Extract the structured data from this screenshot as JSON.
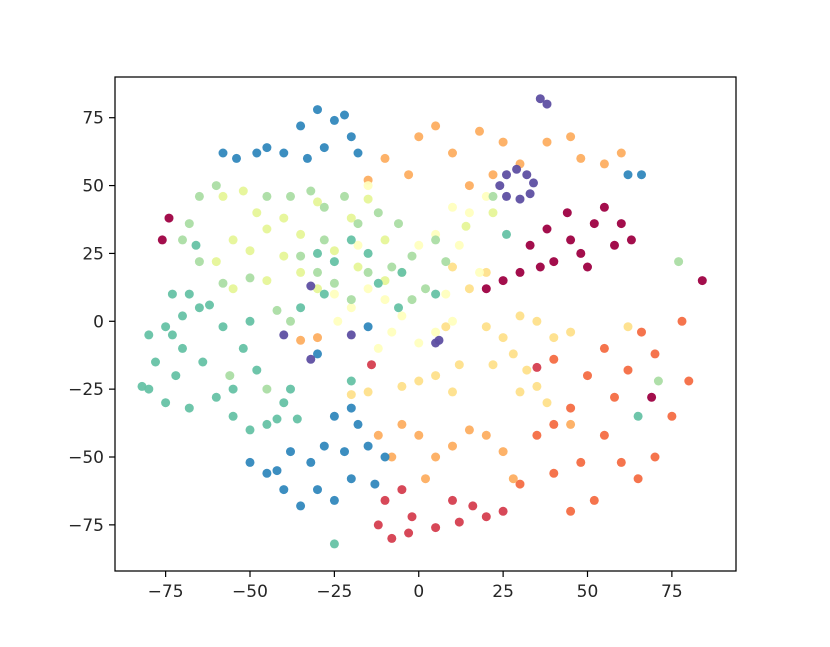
{
  "chart_data": {
    "type": "scatter",
    "title": "",
    "xlabel": "",
    "ylabel": "",
    "xlim": [
      -90,
      94
    ],
    "ylim": [
      -92,
      90
    ],
    "x_ticks": [
      -75,
      -50,
      -25,
      0,
      25,
      50,
      75
    ],
    "y_ticks": [
      -75,
      -50,
      -25,
      0,
      25,
      50,
      75
    ],
    "x_tick_labels": [
      "−75",
      "−50",
      "−25",
      "0",
      "25",
      "50",
      "75"
    ],
    "y_tick_labels": [
      "−75",
      "−50",
      "−25",
      "0",
      "25",
      "50",
      "75"
    ],
    "grid": false,
    "legend": "none",
    "clusters": [
      {
        "color": "#9e0142",
        "points": [
          [
            45,
            30
          ],
          [
            38,
            34
          ],
          [
            52,
            36
          ],
          [
            58,
            28
          ],
          [
            40,
            22
          ],
          [
            50,
            20
          ],
          [
            60,
            36
          ],
          [
            33,
            28
          ],
          [
            44,
            40
          ],
          [
            55,
            42
          ],
          [
            63,
            30
          ],
          [
            48,
            25
          ],
          [
            36,
            20
          ],
          [
            25,
            15
          ],
          [
            30,
            18
          ],
          [
            20,
            12
          ],
          [
            -74,
            38
          ],
          [
            -76,
            30
          ],
          [
            84,
            15
          ],
          [
            69,
            -28
          ]
        ]
      },
      {
        "color": "#d53e4f",
        "points": [
          [
            -10,
            -66
          ],
          [
            -5,
            -62
          ],
          [
            -2,
            -72
          ],
          [
            5,
            -76
          ],
          [
            12,
            -74
          ],
          [
            20,
            -72
          ],
          [
            25,
            -70
          ],
          [
            -8,
            -80
          ],
          [
            -3,
            -78
          ],
          [
            10,
            -66
          ],
          [
            16,
            -68
          ],
          [
            -12,
            -75
          ],
          [
            35,
            -17
          ],
          [
            -14,
            -16
          ]
        ]
      },
      {
        "color": "#f46d43",
        "points": [
          [
            50,
            -20
          ],
          [
            55,
            -10
          ],
          [
            58,
            -28
          ],
          [
            62,
            -18
          ],
          [
            45,
            -32
          ],
          [
            40,
            -38
          ],
          [
            35,
            -42
          ],
          [
            55,
            -42
          ],
          [
            60,
            -52
          ],
          [
            65,
            -58
          ],
          [
            70,
            -50
          ],
          [
            75,
            -35
          ],
          [
            80,
            -22
          ],
          [
            78,
            0
          ],
          [
            66,
            -4
          ],
          [
            70,
            -12
          ],
          [
            30,
            -60
          ],
          [
            40,
            -56
          ],
          [
            45,
            -70
          ],
          [
            52,
            -66
          ],
          [
            48,
            -52
          ],
          [
            40,
            -14
          ]
        ]
      },
      {
        "color": "#fdae61",
        "points": [
          [
            -5,
            -38
          ],
          [
            0,
            -42
          ],
          [
            5,
            -50
          ],
          [
            10,
            -46
          ],
          [
            15,
            -40
          ],
          [
            20,
            -42
          ],
          [
            25,
            -48
          ],
          [
            28,
            -58
          ],
          [
            2,
            -58
          ],
          [
            -8,
            -50
          ],
          [
            -12,
            -42
          ],
          [
            -10,
            60
          ],
          [
            -3,
            54
          ],
          [
            0,
            68
          ],
          [
            5,
            72
          ],
          [
            10,
            62
          ],
          [
            18,
            70
          ],
          [
            25,
            66
          ],
          [
            30,
            58
          ],
          [
            38,
            66
          ],
          [
            45,
            68
          ],
          [
            -15,
            52
          ],
          [
            48,
            60
          ],
          [
            55,
            58
          ],
          [
            60,
            62
          ],
          [
            15,
            50
          ],
          [
            22,
            54
          ],
          [
            -30,
            -6
          ],
          [
            -35,
            -7
          ],
          [
            45,
            -38
          ]
        ]
      },
      {
        "color": "#fee08b",
        "points": [
          [
            20,
            -2
          ],
          [
            25,
            -6
          ],
          [
            30,
            2
          ],
          [
            35,
            0
          ],
          [
            40,
            -6
          ],
          [
            45,
            -4
          ],
          [
            28,
            -12
          ],
          [
            32,
            -18
          ],
          [
            35,
            -24
          ],
          [
            38,
            -30
          ],
          [
            30,
            -26
          ],
          [
            22,
            -16
          ],
          [
            12,
            -16
          ],
          [
            5,
            -20
          ],
          [
            -5,
            -24
          ],
          [
            -15,
            -26
          ],
          [
            -20,
            -27
          ],
          [
            10,
            -26
          ],
          [
            0,
            -22
          ],
          [
            8,
            -2
          ],
          [
            15,
            12
          ],
          [
            20,
            18
          ],
          [
            10,
            20
          ],
          [
            62,
            -2
          ]
        ]
      },
      {
        "color": "#ffffbf",
        "points": [
          [
            -20,
            5
          ],
          [
            -15,
            12
          ],
          [
            -10,
            8
          ],
          [
            -5,
            2
          ],
          [
            -8,
            -4
          ],
          [
            -12,
            -10
          ],
          [
            0,
            -8
          ],
          [
            5,
            -4
          ],
          [
            10,
            0
          ],
          [
            -25,
            10
          ],
          [
            -5,
            18
          ],
          [
            0,
            28
          ],
          [
            5,
            32
          ],
          [
            12,
            28
          ],
          [
            18,
            18
          ],
          [
            8,
            10
          ],
          [
            -18,
            28
          ],
          [
            -24,
            0
          ],
          [
            15,
            40
          ],
          [
            -15,
            50
          ],
          [
            20,
            46
          ],
          [
            10,
            42
          ]
        ]
      },
      {
        "color": "#e6f598",
        "points": [
          [
            -55,
            30
          ],
          [
            -50,
            26
          ],
          [
            -45,
            34
          ],
          [
            -40,
            24
          ],
          [
            -48,
            40
          ],
          [
            -58,
            46
          ],
          [
            -52,
            48
          ],
          [
            -40,
            38
          ],
          [
            -35,
            32
          ],
          [
            -30,
            44
          ],
          [
            -25,
            26
          ],
          [
            -20,
            38
          ],
          [
            -15,
            45
          ],
          [
            -10,
            30
          ],
          [
            -60,
            22
          ],
          [
            -55,
            12
          ],
          [
            -30,
            12
          ],
          [
            -35,
            18
          ],
          [
            -10,
            15
          ],
          [
            -45,
            15
          ],
          [
            14,
            35
          ],
          [
            22,
            40
          ],
          [
            -18,
            20
          ]
        ]
      },
      {
        "color": "#abdda4",
        "points": [
          [
            -68,
            36
          ],
          [
            -65,
            46
          ],
          [
            -60,
            50
          ],
          [
            -70,
            30
          ],
          [
            -65,
            22
          ],
          [
            -58,
            14
          ],
          [
            -50,
            16
          ],
          [
            -45,
            46
          ],
          [
            -38,
            46
          ],
          [
            -32,
            48
          ],
          [
            -28,
            42
          ],
          [
            -22,
            46
          ],
          [
            -18,
            36
          ],
          [
            -28,
            30
          ],
          [
            -35,
            24
          ],
          [
            -30,
            18
          ],
          [
            -25,
            14
          ],
          [
            -20,
            8
          ],
          [
            -15,
            18
          ],
          [
            -8,
            20
          ],
          [
            -2,
            24
          ],
          [
            5,
            30
          ],
          [
            8,
            22
          ],
          [
            2,
            12
          ],
          [
            -2,
            8
          ],
          [
            -6,
            36
          ],
          [
            -12,
            40
          ],
          [
            -56,
            -20
          ],
          [
            -45,
            -25
          ],
          [
            22,
            46
          ],
          [
            77,
            22
          ],
          [
            71,
            -22
          ],
          [
            -42,
            4
          ],
          [
            -38,
            0
          ]
        ]
      },
      {
        "color": "#66c2a5",
        "points": [
          [
            -80,
            -5
          ],
          [
            -75,
            -2
          ],
          [
            -70,
            2
          ],
          [
            -78,
            -15
          ],
          [
            -72,
            -20
          ],
          [
            -80,
            -25
          ],
          [
            -75,
            -30
          ],
          [
            -68,
            -32
          ],
          [
            -60,
            -28
          ],
          [
            -55,
            -35
          ],
          [
            -50,
            -40
          ],
          [
            -45,
            -38
          ],
          [
            -40,
            -30
          ],
          [
            -48,
            -18
          ],
          [
            -52,
            -10
          ],
          [
            -58,
            -2
          ],
          [
            -62,
            6
          ],
          [
            -68,
            10
          ],
          [
            -55,
            -25
          ],
          [
            -42,
            -36
          ],
          [
            -64,
            -15
          ],
          [
            -38,
            -25
          ],
          [
            -70,
            -10
          ],
          [
            -65,
            5
          ],
          [
            -36,
            -36
          ],
          [
            -73,
            10
          ],
          [
            -50,
            0
          ],
          [
            -82,
            -24
          ],
          [
            -25,
            -82
          ],
          [
            26,
            32
          ],
          [
            -66,
            28
          ],
          [
            -73,
            -5
          ],
          [
            -30,
            25
          ],
          [
            -25,
            22
          ],
          [
            -20,
            30
          ],
          [
            -28,
            10
          ],
          [
            -15,
            25
          ],
          [
            -12,
            14
          ],
          [
            -6,
            5
          ],
          [
            -5,
            18
          ],
          [
            5,
            10
          ],
          [
            -35,
            5
          ],
          [
            65,
            -35
          ],
          [
            -20,
            -22
          ]
        ]
      },
      {
        "color": "#3288bd",
        "points": [
          [
            -35,
            72
          ],
          [
            -30,
            78
          ],
          [
            -25,
            74
          ],
          [
            -20,
            68
          ],
          [
            -18,
            62
          ],
          [
            -28,
            64
          ],
          [
            -22,
            76
          ],
          [
            -33,
            60
          ],
          [
            -40,
            62
          ],
          [
            -48,
            62
          ],
          [
            -54,
            60
          ],
          [
            -58,
            62
          ],
          [
            -45,
            64
          ],
          [
            -50,
            -52
          ],
          [
            -45,
            -56
          ],
          [
            -40,
            -62
          ],
          [
            -35,
            -68
          ],
          [
            -30,
            -62
          ],
          [
            -25,
            -66
          ],
          [
            -20,
            -58
          ],
          [
            -22,
            -48
          ],
          [
            -28,
            -46
          ],
          [
            -38,
            -48
          ],
          [
            -42,
            -55
          ],
          [
            -32,
            -52
          ],
          [
            -15,
            -46
          ],
          [
            -10,
            -50
          ],
          [
            -18,
            -38
          ],
          [
            -25,
            -35
          ],
          [
            -20,
            -32
          ],
          [
            -13,
            -60
          ],
          [
            62,
            54
          ],
          [
            66,
            54
          ],
          [
            -30,
            -12
          ],
          [
            -15,
            -2
          ]
        ]
      },
      {
        "color": "#5e4fa2",
        "points": [
          [
            24,
            50
          ],
          [
            26,
            54
          ],
          [
            29,
            56
          ],
          [
            32,
            54
          ],
          [
            34,
            51
          ],
          [
            33,
            47
          ],
          [
            30,
            45
          ],
          [
            26,
            46
          ],
          [
            36,
            82
          ],
          [
            38,
            80
          ],
          [
            -32,
            13
          ],
          [
            -40,
            -5
          ],
          [
            -32,
            -14
          ],
          [
            5,
            -8
          ],
          [
            6,
            -7
          ],
          [
            -20,
            -5
          ]
        ]
      }
    ]
  }
}
